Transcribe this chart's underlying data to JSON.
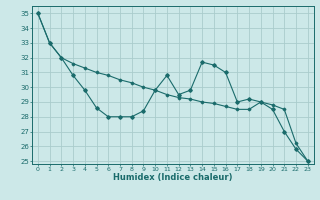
{
  "xlabel": "Humidex (Indice chaleur)",
  "bg_color": "#cce8e8",
  "grid_color": "#aacccc",
  "line_color": "#1a6b6b",
  "xlim": [
    -0.5,
    23.5
  ],
  "ylim": [
    24.8,
    35.5
  ],
  "yticks": [
    25,
    26,
    27,
    28,
    29,
    30,
    31,
    32,
    33,
    34,
    35
  ],
  "xticks": [
    0,
    1,
    2,
    3,
    4,
    5,
    6,
    7,
    8,
    9,
    10,
    11,
    12,
    13,
    14,
    15,
    16,
    17,
    18,
    19,
    20,
    21,
    22,
    23
  ],
  "line1_x": [
    0,
    1,
    2,
    3,
    4,
    5,
    6,
    7,
    8,
    9,
    10,
    11,
    12,
    13,
    14,
    15,
    16,
    17,
    18,
    19,
    20,
    21,
    22,
    23
  ],
  "line1_y": [
    35.0,
    33.0,
    32.0,
    30.8,
    29.8,
    28.6,
    28.0,
    28.0,
    28.0,
    28.4,
    29.8,
    30.8,
    29.5,
    29.8,
    31.7,
    31.5,
    31.0,
    29.0,
    29.2,
    29.0,
    28.5,
    27.0,
    25.8,
    25.0
  ],
  "line2_x": [
    0,
    1,
    2,
    3,
    4,
    5,
    6,
    7,
    8,
    9,
    10,
    11,
    12,
    13,
    14,
    15,
    16,
    17,
    18,
    19,
    20,
    21,
    22,
    23
  ],
  "line2_y": [
    35.0,
    33.0,
    32.0,
    31.6,
    31.3,
    31.0,
    30.8,
    30.5,
    30.3,
    30.0,
    29.8,
    29.5,
    29.3,
    29.2,
    29.0,
    28.9,
    28.7,
    28.5,
    28.5,
    29.0,
    28.8,
    28.5,
    26.2,
    25.0
  ]
}
